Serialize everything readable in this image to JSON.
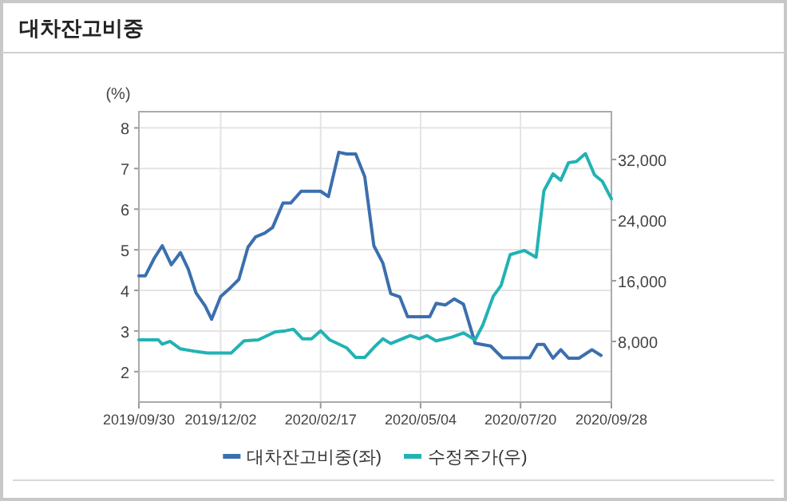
{
  "chart_data": {
    "type": "line",
    "title": "대차잔고비중",
    "ylabel": "(%)",
    "xlim": [
      "2019-09-30",
      "2020-09-28"
    ],
    "xticks": [
      {
        "value": "2019-09-30",
        "label": "2019/09/30"
      },
      {
        "value": "2019-12-02",
        "label": "2019/12/02"
      },
      {
        "value": "2020-02-17",
        "label": "2020/02/17"
      },
      {
        "value": "2020-05-04",
        "label": "2020/05/04"
      },
      {
        "value": "2020-07-20",
        "label": "2020/07/20"
      },
      {
        "value": "2020-09-28",
        "label": "2020/09/28"
      }
    ],
    "ylim": [
      1.25,
      8.4
    ],
    "yticks": [
      2,
      3,
      4,
      5,
      6,
      7,
      8
    ],
    "y2lim": [
      0,
      38300
    ],
    "y2ticks": [
      {
        "value": 8000,
        "label": "8,000"
      },
      {
        "value": 16000,
        "label": "16,000"
      },
      {
        "value": 24000,
        "label": "24,000"
      },
      {
        "value": 32000,
        "label": "32,000"
      }
    ],
    "grid": true,
    "legend": "bottom",
    "series": [
      {
        "name": "대차잔고비중(좌)",
        "color": "#3b6fae",
        "x": [
          "2019-09-30",
          "2019-10-05",
          "2019-10-12",
          "2019-10-18",
          "2019-10-25",
          "2019-11-01",
          "2019-11-07",
          "2019-11-13",
          "2019-11-20",
          "2019-11-25",
          "2019-12-02",
          "2019-12-10",
          "2019-12-16",
          "2019-12-23",
          "2019-12-29",
          "2020-01-05",
          "2020-01-11",
          "2020-01-19",
          "2020-01-25",
          "2020-02-02",
          "2020-02-10",
          "2020-02-17",
          "2020-02-23",
          "2020-03-02",
          "2020-03-08",
          "2020-03-15",
          "2020-03-22",
          "2020-03-29",
          "2020-04-05",
          "2020-04-11",
          "2020-04-18",
          "2020-04-24",
          "2020-05-04",
          "2020-05-11",
          "2020-05-16",
          "2020-05-23",
          "2020-05-30",
          "2020-06-06",
          "2020-06-15",
          "2020-06-27",
          "2020-07-06",
          "2020-07-20",
          "2020-07-27",
          "2020-08-02",
          "2020-08-07",
          "2020-08-14",
          "2020-08-20",
          "2020-08-26",
          "2020-09-03",
          "2020-09-13",
          "2020-09-20"
        ],
        "values": [
          4.36,
          4.36,
          4.8,
          5.1,
          4.63,
          4.93,
          4.53,
          3.94,
          3.62,
          3.29,
          3.85,
          4.08,
          4.27,
          5.06,
          5.32,
          5.41,
          5.55,
          6.15,
          6.15,
          6.44,
          6.44,
          6.44,
          6.31,
          7.4,
          7.36,
          7.36,
          6.8,
          5.1,
          4.67,
          3.92,
          3.84,
          3.35,
          3.35,
          3.35,
          3.68,
          3.64,
          3.79,
          3.66,
          2.7,
          2.63,
          2.34,
          2.34,
          2.34,
          2.67,
          2.67,
          2.33,
          2.54,
          2.33,
          2.33,
          2.54,
          2.4
        ]
      },
      {
        "name": "수정주가(우)",
        "color": "#22b2b4",
        "axis": "y2",
        "x": [
          "2019-09-30",
          "2019-10-15",
          "2019-10-18",
          "2019-10-24",
          "2019-11-01",
          "2019-11-13",
          "2019-11-22",
          "2019-12-10",
          "2019-12-20",
          "2019-12-31",
          "2020-01-13",
          "2020-01-21",
          "2020-01-27",
          "2020-02-03",
          "2020-02-10",
          "2020-02-17",
          "2020-02-24",
          "2020-03-08",
          "2020-03-15",
          "2020-03-22",
          "2020-03-30",
          "2020-04-05",
          "2020-04-11",
          "2020-04-26",
          "2020-05-03",
          "2020-05-09",
          "2020-05-16",
          "2020-05-28",
          "2020-06-06",
          "2020-06-15",
          "2020-06-21",
          "2020-06-29",
          "2020-07-05",
          "2020-07-12",
          "2020-07-23",
          "2020-08-01",
          "2020-08-07",
          "2020-08-14",
          "2020-08-20",
          "2020-08-26",
          "2020-09-01",
          "2020-09-08",
          "2020-09-15",
          "2020-09-21",
          "2020-09-28"
        ],
        "values": [
          8210,
          8210,
          7650,
          8000,
          7020,
          6670,
          6460,
          6460,
          8070,
          8210,
          9260,
          9400,
          9610,
          8350,
          8350,
          9400,
          8210,
          7160,
          5890,
          5890,
          7370,
          8350,
          7720,
          8770,
          8350,
          8770,
          8070,
          8560,
          9120,
          8210,
          10180,
          13960,
          15370,
          19440,
          20000,
          19090,
          27860,
          30100,
          29260,
          31580,
          31720,
          32770,
          29960,
          29120,
          26810
        ]
      }
    ]
  }
}
